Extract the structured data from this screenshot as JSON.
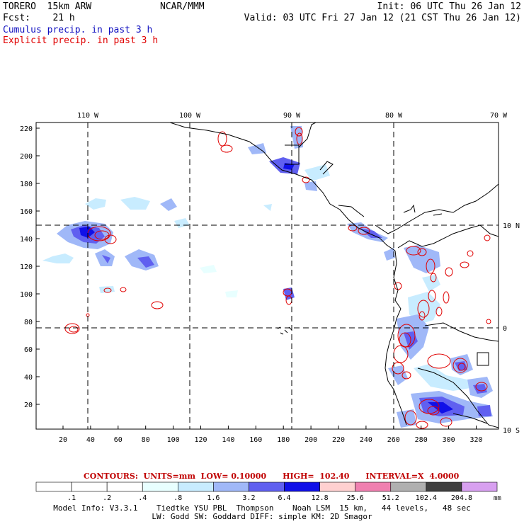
{
  "header": {
    "model": "TORERO",
    "resolution": "15km ARW",
    "org": "NCAR/MMM",
    "init": "Init: 06 UTC Thu 26 Jan 12",
    "fcst_label": "Fcst:",
    "fcst_value": "21 h",
    "valid": "Valid: 03 UTC Fri 27 Jan 12 (21 CST Thu 26 Jan 12)",
    "line_cumulus": "Cumulus precip. in past 3 h",
    "line_explicit": "Explicit precip. in past 3 h"
  },
  "colors": {
    "cumulus": "#1010c0",
    "explicit": "#e00000",
    "contour_title": "#c00000"
  },
  "map": {
    "lon_labels": [
      "110 W",
      "100 W",
      "90 W",
      "80 W",
      "70 W"
    ],
    "lat_labels": [
      "10 N",
      "0",
      "10 S"
    ],
    "y_ticks": [
      "220",
      "200",
      "180",
      "160",
      "140",
      "120",
      "100",
      "80",
      "60",
      "40",
      "20"
    ],
    "x_ticks": [
      "20",
      "40",
      "60",
      "80",
      "100",
      "120",
      "140",
      "160",
      "180",
      "200",
      "220",
      "240",
      "260",
      "280",
      "300",
      "320"
    ]
  },
  "colorbar": {
    "title": "CONTOURS:  UNITS=mm  LOW= 0.10000      HIGH=  102.40      INTERVAL=X  4.0000",
    "labels": [
      ".1",
      ".2",
      ".4",
      ".8",
      "1.6",
      "3.2",
      "6.4",
      "12.8",
      "25.6",
      "51.2",
      "102.4",
      "204.8"
    ],
    "unit": "mm",
    "colors": [
      "#ffffff",
      "#ffffff",
      "#ffffff",
      "#e8ffff",
      "#c8ecff",
      "#a0b8f8",
      "#6060f0",
      "#1010e8",
      "#ffd0d0",
      "#f080b0",
      "#b0b0b0",
      "#404040",
      "#d8a0f0"
    ]
  },
  "footer": {
    "line1": "Model Info: V3.3.1    Tiedtke YSU PBL  Thompson    Noah LSM  15 km,   44 levels,   48 sec",
    "line2": "LW: Godd SW: Goddard DIFF: simple KM: 2D Smagor"
  }
}
